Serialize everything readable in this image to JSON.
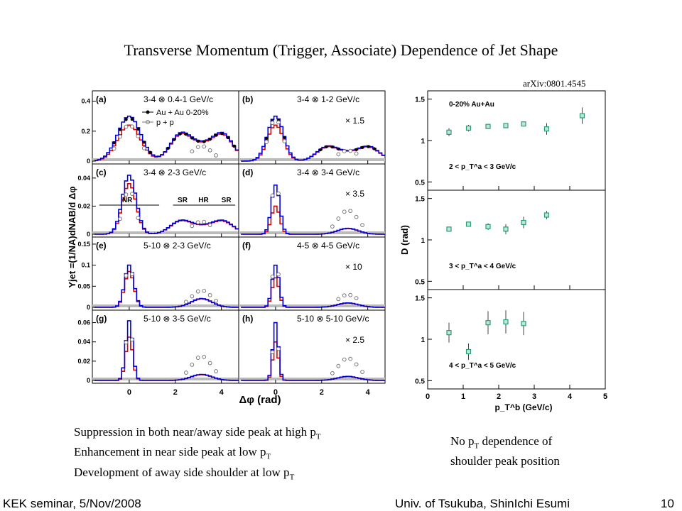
{
  "slide": {
    "title": "Transverse Momentum (Trigger, Associate) Dependence of Jet Shape",
    "arxiv": "arXiv:0801.4545",
    "notes_left": [
      {
        "text": "Suppression in both near/away side peak at high p",
        "sub": "T"
      },
      {
        "text": "Enhancement in near side peak at low p",
        "sub": "T"
      },
      {
        "text": "Development of away side shoulder at low p",
        "sub": "T"
      }
    ],
    "notes_right": {
      "line1_pre": "No p",
      "line1_sub": "T",
      "line1_post": " dependence of",
      "line2": "shoulder peak position"
    },
    "footer": {
      "left": "KEK seminar, 5/Nov/2008",
      "center": "Univ. of Tsukuba, ShinIchi Esumi",
      "page": "10"
    }
  },
  "chart_data": [
    {
      "type": "line",
      "title": "",
      "ylabel": "Yjet =(1/NA)dNAB/d Δφ",
      "xlabel": "Δφ (rad)",
      "xlim": [
        -1.6,
        4.75
      ],
      "x_ticks": [
        "0",
        "2",
        "4"
      ],
      "legend": [
        "Au + Au 0-20%",
        "p + p"
      ],
      "region_labels": [
        "NR",
        "SR",
        "HR",
        "SR"
      ],
      "colors": {
        "auau": "#000000",
        "pp": "#777777",
        "blue": "#0000dd",
        "red": "#dd0000",
        "flow": "#bbbbbb"
      },
      "panels": [
        {
          "id": "(a)",
          "label": "3-4 ⊗ 0.4-1 GeV/c",
          "scale": "",
          "ylim": [
            0,
            0.45
          ],
          "yticks": [
            "0",
            "0.2",
            "0.4"
          ],
          "near": 0.3,
          "near2": 0.24,
          "away": 0.19,
          "pp_near": 0.24,
          "pp_away": 0.1,
          "width": 0.5,
          "shoulder": true
        },
        {
          "id": "(b)",
          "label": "3-4 ⊗ 1-2 GeV/c",
          "scale": "× 1.5",
          "ylim": [
            0,
            0.45
          ],
          "yticks": [],
          "near": 0.3,
          "near2": 0.24,
          "away": 0.1,
          "pp_near": 0.28,
          "pp_away": 0.07,
          "width": 0.35,
          "shoulder": true
        },
        {
          "id": "(c)",
          "label": "3-4 ⊗ 2-3 GeV/c",
          "scale": "",
          "ylim": [
            0,
            0.048
          ],
          "yticks": [
            "0",
            "0.02",
            "0.04"
          ],
          "near": 0.042,
          "near2": 0.036,
          "away": 0.01,
          "pp_near": 0.032,
          "pp_away": 0.009,
          "width": 0.3,
          "shoulder": true
        },
        {
          "id": "(d)",
          "label": "3-4 ⊗ 3-4 GeV/c",
          "scale": "× 3.5",
          "ylim": [
            0,
            0.048
          ],
          "yticks": [],
          "near": 0.035,
          "near2": 0.02,
          "away": 0.004,
          "pp_near": 0.039,
          "pp_away": 0.017,
          "width": 0.18,
          "shoulder": false
        },
        {
          "id": "(e)",
          "label": "5-10 ⊗ 2-3 GeV/c",
          "scale": "",
          "ylim": [
            0,
            0.16
          ],
          "yticks": [
            "0",
            "0.05",
            "0.1",
            "0.15"
          ],
          "near": 0.1,
          "near2": 0.085,
          "away": 0.02,
          "pp_near": 0.1,
          "pp_away": 0.04,
          "width": 0.2,
          "shoulder": false
        },
        {
          "id": "(f)",
          "label": "4-5 ⊗ 4-5 GeV/c",
          "scale": "× 10",
          "ylim": [
            0,
            0.16
          ],
          "yticks": [],
          "near": 0.1,
          "near2": 0.07,
          "away": 0.01,
          "pp_near": 0.12,
          "pp_away": 0.03,
          "width": 0.15,
          "shoulder": false
        },
        {
          "id": "(g)",
          "label": "5-10 ⊗ 3-5 GeV/c",
          "scale": "",
          "ylim": [
            0,
            0.07
          ],
          "yticks": [
            "0",
            "0.02",
            "0.04",
            "0.06"
          ],
          "near": 0.062,
          "near2": 0.045,
          "away": 0.006,
          "pp_near": 0.065,
          "pp_away": 0.025,
          "width": 0.15,
          "shoulder": false
        },
        {
          "id": "(h)",
          "label": "5-10 ⊗ 5-10 GeV/c",
          "scale": "× 2.5",
          "ylim": [
            0,
            0.07
          ],
          "yticks": [],
          "near": 0.06,
          "near2": 0.04,
          "away": 0.004,
          "pp_near": 0.064,
          "pp_away": 0.023,
          "width": 0.12,
          "shoulder": false
        }
      ]
    },
    {
      "type": "scatter",
      "title": "",
      "ylabel": "D (rad)",
      "xlabel": "p_T^b (GeV/c)",
      "xlim": [
        0,
        5
      ],
      "ylim": [
        0.4,
        1.6
      ],
      "x_ticks": [
        "0",
        "1",
        "2",
        "3",
        "4",
        "5"
      ],
      "y_ticks": [
        "0.5",
        "1",
        "1.5"
      ],
      "top_label": "0-20% Au+Au",
      "color": "#2a9d78",
      "panels": [
        {
          "label": "2 < p_T^a < 3 GeV/c",
          "points": [
            {
              "x": 0.6,
              "y": 1.1,
              "err": 0.05
            },
            {
              "x": 1.15,
              "y": 1.15,
              "err": 0.04
            },
            {
              "x": 1.7,
              "y": 1.17,
              "err": 0.03
            },
            {
              "x": 2.2,
              "y": 1.18,
              "err": 0.03
            },
            {
              "x": 2.7,
              "y": 1.2,
              "err": 0.03
            },
            {
              "x": 3.35,
              "y": 1.14,
              "err": 0.07
            },
            {
              "x": 4.35,
              "y": 1.3,
              "err": 0.1
            }
          ]
        },
        {
          "label": "3 < p_T^a < 4 GeV/c",
          "points": [
            {
              "x": 0.6,
              "y": 1.13,
              "err": 0.03
            },
            {
              "x": 1.15,
              "y": 1.19,
              "err": 0.03
            },
            {
              "x": 1.7,
              "y": 1.16,
              "err": 0.04
            },
            {
              "x": 2.2,
              "y": 1.13,
              "err": 0.06
            },
            {
              "x": 2.7,
              "y": 1.21,
              "err": 0.07
            },
            {
              "x": 3.35,
              "y": 1.3,
              "err": 0.05
            }
          ]
        },
        {
          "label": "4 < p_T^a < 5 GeV/c",
          "points": [
            {
              "x": 0.6,
              "y": 1.08,
              "err": 0.12
            },
            {
              "x": 1.15,
              "y": 0.85,
              "err": 0.1
            },
            {
              "x": 1.7,
              "y": 1.2,
              "err": 0.14
            },
            {
              "x": 2.2,
              "y": 1.21,
              "err": 0.14
            },
            {
              "x": 2.7,
              "y": 1.19,
              "err": 0.14
            }
          ]
        }
      ]
    }
  ]
}
